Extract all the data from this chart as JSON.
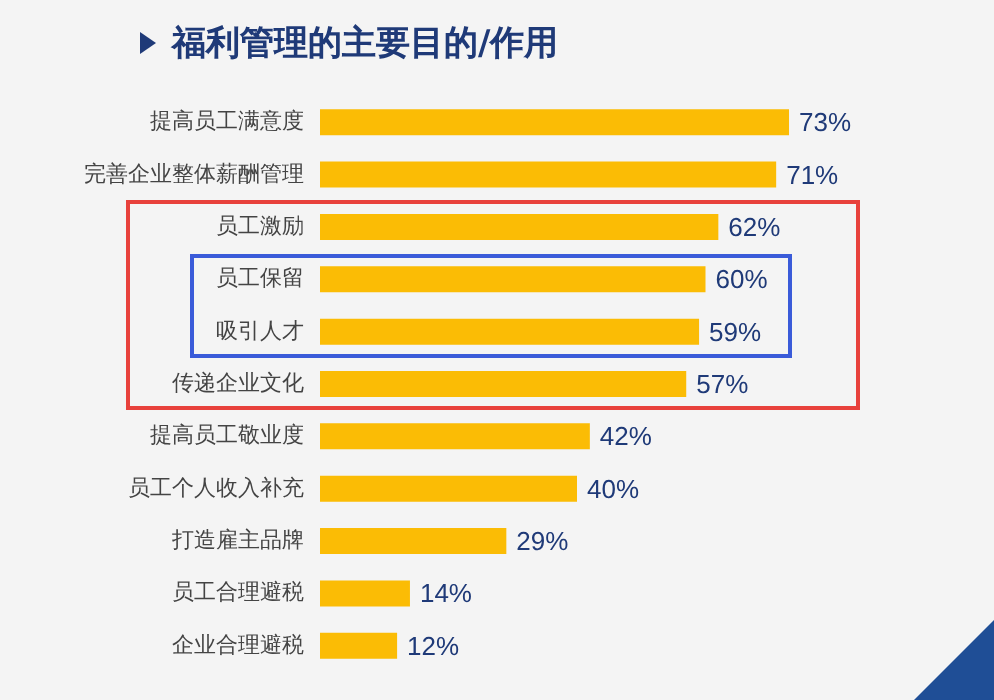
{
  "chart_data": {
    "type": "bar",
    "orientation": "horizontal",
    "title": "福利管理的主要目的/作用",
    "categories": [
      "提高员工满意度",
      "完善企业整体薪酬管理",
      "员工激励",
      "员工保留",
      "吸引人才",
      "传递企业文化",
      "提高员工敬业度",
      "员工个人收入补充",
      "打造雇主品牌",
      "员工合理避税",
      "企业合理避税"
    ],
    "values": [
      73,
      71,
      62,
      60,
      59,
      57,
      42,
      40,
      29,
      14,
      12
    ],
    "value_labels": [
      "73%",
      "71%",
      "62%",
      "60%",
      "59%",
      "57%",
      "42%",
      "40%",
      "29%",
      "14%",
      "12%"
    ],
    "color": "#fbbc05",
    "grid": false
  }
}
